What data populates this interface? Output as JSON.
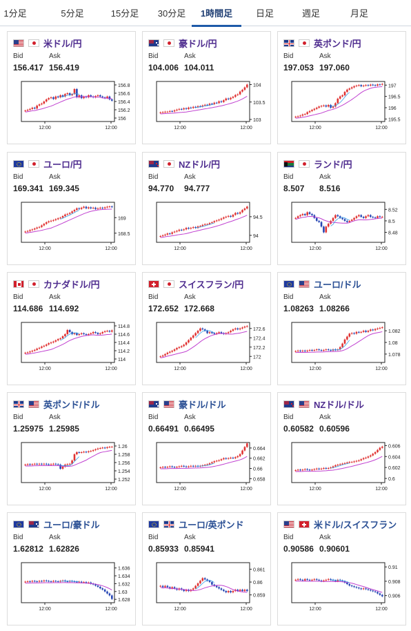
{
  "tabs": [
    {
      "label": "1分足",
      "active": false
    },
    {
      "label": "5分足",
      "active": false
    },
    {
      "label": "15分足",
      "active": false
    },
    {
      "label": "30分足",
      "active": false
    },
    {
      "label": "1時間足",
      "active": true
    },
    {
      "label": "日足",
      "active": false
    },
    {
      "label": "週足",
      "active": false
    },
    {
      "label": "月足",
      "active": false
    }
  ],
  "labels": {
    "bid": "Bid",
    "ask": "Ask"
  },
  "colors": {
    "up": "#e03232",
    "down": "#2646b4",
    "ma": "#c040d0",
    "ma_short": "#3aa0e8",
    "frame": "#222222",
    "accent": "#1e5aa8"
  },
  "pairs": [
    {
      "name": "米ドル/円",
      "flags": [
        "us",
        "jp"
      ],
      "bid": "156.417",
      "ask": "156.419",
      "chart_data": {
        "type": "candlestick",
        "x_ticks": [
          "12:00",
          "12:00"
        ],
        "y_ticks": [
          "156.8",
          "156.6",
          "156.4",
          "156.2",
          "156"
        ],
        "ylim": [
          155.95,
          156.85
        ],
        "close": [
          156.18,
          156.2,
          156.22,
          156.25,
          156.23,
          156.3,
          156.33,
          156.35,
          156.4,
          156.45,
          156.48,
          156.5,
          156.46,
          156.52,
          156.5,
          156.55,
          156.52,
          156.58,
          156.6,
          156.55,
          156.58,
          156.7,
          156.5,
          156.55,
          156.48,
          156.52,
          156.5,
          156.55,
          156.52,
          156.5,
          156.53,
          156.55,
          156.52,
          156.5,
          156.48,
          156.52,
          156.45,
          156.42
        ]
      }
    },
    {
      "name": "豪ドル/円",
      "flags": [
        "au",
        "jp"
      ],
      "bid": "104.006",
      "ask": "104.011",
      "chart_data": {
        "type": "candlestick",
        "x_ticks": [
          "12:00",
          "12:00"
        ],
        "y_ticks": [
          "104",
          "103.5",
          "103"
        ],
        "ylim": [
          102.98,
          104.05
        ],
        "close": [
          103.2,
          103.21,
          103.22,
          103.22,
          103.24,
          103.23,
          103.26,
          103.28,
          103.3,
          103.29,
          103.32,
          103.3,
          103.34,
          103.33,
          103.36,
          103.35,
          103.38,
          103.37,
          103.4,
          103.42,
          103.41,
          103.45,
          103.44,
          103.48,
          103.47,
          103.52,
          103.5,
          103.55,
          103.6,
          103.58,
          103.62,
          103.65,
          103.7,
          103.72,
          103.8,
          103.85,
          103.92,
          104.0
        ]
      }
    },
    {
      "name": "英ポンド/円",
      "flags": [
        "gb",
        "jp"
      ],
      "bid": "197.053",
      "ask": "197.060",
      "chart_data": {
        "type": "candlestick",
        "x_ticks": [
          "12:00",
          "12:00"
        ],
        "y_ticks": [
          "197",
          "196.5",
          "196",
          "195.5"
        ],
        "ylim": [
          195.45,
          197.1
        ],
        "close": [
          195.6,
          195.62,
          195.65,
          195.7,
          195.72,
          195.8,
          195.85,
          195.9,
          195.95,
          196.0,
          196.05,
          196.08,
          196.1,
          196.05,
          196.12,
          196.0,
          196.05,
          196.2,
          196.4,
          196.5,
          196.55,
          196.7,
          196.8,
          196.85,
          196.9,
          196.95,
          196.98,
          197.0,
          196.95,
          196.98,
          197.0,
          196.98,
          197.02,
          197.0,
          196.98,
          197.03,
          197.02,
          197.05
        ]
      }
    },
    {
      "name": "ユーロ/円",
      "flags": [
        "eu",
        "jp"
      ],
      "bid": "169.341",
      "ask": "169.345",
      "chart_data": {
        "type": "candlestick",
        "x_ticks": [
          "12:00",
          "12:00"
        ],
        "y_ticks": [
          "169",
          "168.5"
        ],
        "ylim": [
          168.25,
          169.45
        ],
        "close": [
          168.55,
          168.57,
          168.6,
          168.62,
          168.65,
          168.68,
          168.7,
          168.75,
          168.8,
          168.85,
          168.88,
          168.9,
          168.92,
          168.95,
          168.98,
          169.0,
          169.05,
          169.1,
          169.12,
          169.15,
          169.2,
          169.25,
          169.3,
          169.28,
          169.32,
          169.35,
          169.3,
          169.33,
          169.3,
          169.32,
          169.28,
          169.3,
          169.32,
          169.3,
          169.33,
          169.35,
          169.36,
          169.34
        ]
      }
    },
    {
      "name": "NZドル/円",
      "flags": [
        "nz",
        "jp"
      ],
      "bid": "94.770",
      "ask": "94.777",
      "chart_data": {
        "type": "candlestick",
        "x_ticks": [
          "12:00",
          "12:00"
        ],
        "y_ticks": [
          "94.5",
          "94"
        ],
        "ylim": [
          93.85,
          94.85
        ],
        "close": [
          93.98,
          94.0,
          94.02,
          94.05,
          94.04,
          94.08,
          94.1,
          94.12,
          94.15,
          94.14,
          94.16,
          94.2,
          94.18,
          94.2,
          94.22,
          94.2,
          94.24,
          94.25,
          94.28,
          94.3,
          94.3,
          94.33,
          94.35,
          94.38,
          94.4,
          94.42,
          94.45,
          94.48,
          94.5,
          94.52,
          94.5,
          94.55,
          94.6,
          94.58,
          94.62,
          94.68,
          94.72,
          94.77
        ]
      }
    },
    {
      "name": "ランド/円",
      "flags": [
        "za",
        "jp"
      ],
      "bid": "8.507",
      "ask": "8.516",
      "chart_data": {
        "type": "candlestick",
        "x_ticks": [
          "12:00",
          "12:00"
        ],
        "y_ticks": [
          "8.52",
          "8.5",
          "8.48"
        ],
        "ylim": [
          8.465,
          8.53
        ],
        "close": [
          8.505,
          8.508,
          8.51,
          8.512,
          8.51,
          8.515,
          8.512,
          8.51,
          8.505,
          8.5,
          8.498,
          8.49,
          8.48,
          8.49,
          8.495,
          8.5,
          8.505,
          8.51,
          8.508,
          8.505,
          8.503,
          8.5,
          8.498,
          8.5,
          8.502,
          8.505,
          8.508,
          8.51,
          8.507,
          8.505,
          8.508,
          8.51,
          8.507,
          8.506,
          8.505,
          8.508,
          8.507,
          8.507
        ]
      }
    },
    {
      "name": "カナダドル/円",
      "flags": [
        "ca",
        "jp"
      ],
      "bid": "114.686",
      "ask": "114.692",
      "chart_data": {
        "type": "candlestick",
        "x_ticks": [
          "12:00",
          "12:00"
        ],
        "y_ticks": [
          "114.8",
          "114.6",
          "114.4",
          "114.2",
          "114"
        ],
        "ylim": [
          113.95,
          114.85
        ],
        "close": [
          114.15,
          114.16,
          114.18,
          114.2,
          114.22,
          114.25,
          114.27,
          114.3,
          114.32,
          114.35,
          114.38,
          114.4,
          114.42,
          114.45,
          114.48,
          114.5,
          114.55,
          114.6,
          114.7,
          114.65,
          114.6,
          114.62,
          114.58,
          114.6,
          114.62,
          114.6,
          114.58,
          114.6,
          114.62,
          114.65,
          114.63,
          114.6,
          114.62,
          114.65,
          114.67,
          114.68,
          114.66,
          114.69
        ]
      }
    },
    {
      "name": "スイスフラン/円",
      "flags": [
        "ch",
        "jp"
      ],
      "bid": "172.652",
      "ask": "172.668",
      "chart_data": {
        "type": "candlestick",
        "x_ticks": [
          "12:00",
          "12:00"
        ],
        "y_ticks": [
          "172.6",
          "172.4",
          "172.2",
          "172"
        ],
        "ylim": [
          171.9,
          172.7
        ],
        "close": [
          172.0,
          172.02,
          172.05,
          172.08,
          172.1,
          172.12,
          172.15,
          172.18,
          172.2,
          172.22,
          172.25,
          172.3,
          172.35,
          172.4,
          172.45,
          172.5,
          172.55,
          172.6,
          172.58,
          172.55,
          172.5,
          172.52,
          172.5,
          172.48,
          172.5,
          172.52,
          172.5,
          172.48,
          172.5,
          172.52,
          172.55,
          172.58,
          172.6,
          172.58,
          172.6,
          172.62,
          172.64,
          172.65
        ]
      }
    },
    {
      "name": "ユーロ/ドル",
      "flags": [
        "eu",
        "us"
      ],
      "bid": "1.08263",
      "ask": "1.08266",
      "chart_data": {
        "type": "candlestick",
        "x_ticks": [
          "12:00",
          "12:00"
        ],
        "y_ticks": [
          "1.082",
          "1.08",
          "1.078"
        ],
        "ylim": [
          1.0768,
          1.0832
        ],
        "close": [
          1.0785,
          1.0786,
          1.0785,
          1.0786,
          1.0785,
          1.0786,
          1.0787,
          1.0786,
          1.0787,
          1.0788,
          1.0787,
          1.0786,
          1.0787,
          1.0788,
          1.0787,
          1.0786,
          1.0788,
          1.0787,
          1.0788,
          1.0792,
          1.0798,
          1.0805,
          1.081,
          1.0815,
          1.0816,
          1.0815,
          1.0818,
          1.0817,
          1.0818,
          1.082,
          1.0818,
          1.082,
          1.0822,
          1.0821,
          1.0823,
          1.0824,
          1.0825,
          1.0826
        ]
      }
    },
    {
      "name": "英ポンド/ドル",
      "flags": [
        "gb",
        "us"
      ],
      "bid": "1.25975",
      "ask": "1.25985",
      "chart_data": {
        "type": "candlestick",
        "x_ticks": [
          "12:00",
          "12:00"
        ],
        "y_ticks": [
          "1.26",
          "1.258",
          "1.256",
          "1.254",
          "1.252"
        ],
        "ylim": [
          1.2515,
          1.2605
        ],
        "close": [
          1.2555,
          1.2556,
          1.2555,
          1.2556,
          1.2557,
          1.2556,
          1.2557,
          1.2556,
          1.2557,
          1.2556,
          1.2555,
          1.2556,
          1.2557,
          1.2556,
          1.2555,
          1.2545,
          1.255,
          1.2555,
          1.2556,
          1.2557,
          1.2565,
          1.258,
          1.2585,
          1.2584,
          1.2585,
          1.2586,
          1.2585,
          1.2587,
          1.2588,
          1.259,
          1.2592,
          1.2594,
          1.2595,
          1.2596,
          1.2595,
          1.2597,
          1.2598,
          1.2598
        ]
      }
    },
    {
      "name": "豪ドル/ドル",
      "flags": [
        "au",
        "us"
      ],
      "bid": "0.66491",
      "ask": "0.66495",
      "chart_data": {
        "type": "candlestick",
        "x_ticks": [
          "12:00",
          "12:00"
        ],
        "y_ticks": [
          "0.664",
          "0.662",
          "0.66",
          "0.658"
        ],
        "ylim": [
          0.6575,
          0.6648
        ],
        "close": [
          0.6602,
          0.6603,
          0.6602,
          0.6603,
          0.6604,
          0.6603,
          0.6602,
          0.6603,
          0.6604,
          0.6605,
          0.6604,
          0.6603,
          0.6604,
          0.6605,
          0.6604,
          0.6605,
          0.6604,
          0.6605,
          0.6606,
          0.6607,
          0.6608,
          0.661,
          0.6612,
          0.6614,
          0.6615,
          0.6616,
          0.6618,
          0.662,
          0.6619,
          0.662,
          0.6621,
          0.662,
          0.6622,
          0.6624,
          0.6628,
          0.6635,
          0.6642,
          0.6649
        ]
      }
    },
    {
      "name": "NZドル/ドル",
      "flags": [
        "nz",
        "us"
      ],
      "bid": "0.60582",
      "ask": "0.60596",
      "chart_data": {
        "type": "candlestick",
        "x_ticks": [
          "12:00",
          "12:00"
        ],
        "y_ticks": [
          "0.606",
          "0.604",
          "0.602",
          "0.6"
        ],
        "ylim": [
          0.5995,
          0.6063
        ],
        "close": [
          0.6015,
          0.6016,
          0.6015,
          0.6016,
          0.6017,
          0.6016,
          0.6015,
          0.6016,
          0.6017,
          0.6018,
          0.6017,
          0.6018,
          0.6019,
          0.6018,
          0.6019,
          0.602,
          0.6022,
          0.6024,
          0.6025,
          0.6026,
          0.6027,
          0.6028,
          0.6029,
          0.603,
          0.603,
          0.6031,
          0.6032,
          0.6033,
          0.6035,
          0.6037,
          0.6038,
          0.604,
          0.6042,
          0.6045,
          0.6048,
          0.6052,
          0.6056,
          0.6058
        ]
      }
    },
    {
      "name": "ユーロ/豪ドル",
      "flags": [
        "eu",
        "au"
      ],
      "bid": "1.62812",
      "ask": "1.62826",
      "chart_data": {
        "type": "candlestick",
        "x_ticks": [
          "12:00",
          "12:00"
        ],
        "y_ticks": [
          "1.636",
          "1.634",
          "1.632",
          "1.63",
          "1.628"
        ],
        "ylim": [
          1.6275,
          1.637
        ],
        "close": [
          1.6325,
          1.6326,
          1.6325,
          1.6327,
          1.6326,
          1.6325,
          1.6327,
          1.6326,
          1.6328,
          1.6327,
          1.6326,
          1.6325,
          1.6327,
          1.6326,
          1.6325,
          1.6327,
          1.6328,
          1.6326,
          1.6325,
          1.6327,
          1.6326,
          1.6325,
          1.6324,
          1.6325,
          1.6323,
          1.6324,
          1.6322,
          1.6323,
          1.632,
          1.6318,
          1.6315,
          1.6312,
          1.6308,
          1.6305,
          1.63,
          1.6295,
          1.629,
          1.6281
        ]
      }
    },
    {
      "name": "ユーロ/英ポンド",
      "flags": [
        "eu",
        "gb"
      ],
      "bid": "0.85933",
      "ask": "0.85941",
      "chart_data": {
        "type": "candlestick",
        "x_ticks": [
          "12:00",
          "12:00"
        ],
        "y_ticks": [
          "0.861",
          "0.86",
          "0.859"
        ],
        "ylim": [
          0.8585,
          0.8614
        ],
        "close": [
          0.8597,
          0.8596,
          0.8597,
          0.8596,
          0.8595,
          0.8596,
          0.8595,
          0.8594,
          0.8595,
          0.8594,
          0.8593,
          0.8594,
          0.8593,
          0.8594,
          0.8595,
          0.8597,
          0.8599,
          0.8601,
          0.8603,
          0.8602,
          0.8601,
          0.86,
          0.8598,
          0.8597,
          0.8596,
          0.8595,
          0.8594,
          0.8593,
          0.8592,
          0.8593,
          0.8592,
          0.8593,
          0.8594,
          0.8593,
          0.8594,
          0.8593,
          0.8594,
          0.8593
        ]
      }
    },
    {
      "name": "米ドル/スイスフラン",
      "flags": [
        "us",
        "ch"
      ],
      "bid": "0.90586",
      "ask": "0.90601",
      "chart_data": {
        "type": "candlestick",
        "x_ticks": [
          "12:00",
          "12:00"
        ],
        "y_ticks": [
          "0.91",
          "0.908",
          "0.906"
        ],
        "ylim": [
          0.9052,
          0.9104
        ],
        "close": [
          0.9082,
          0.9083,
          0.9082,
          0.9081,
          0.9083,
          0.9082,
          0.9081,
          0.9082,
          0.9083,
          0.9082,
          0.9081,
          0.908,
          0.9081,
          0.9082,
          0.9083,
          0.9082,
          0.9081,
          0.908,
          0.9082,
          0.9081,
          0.908,
          0.9078,
          0.9076,
          0.9074,
          0.9073,
          0.9072,
          0.9071,
          0.907,
          0.9069,
          0.907,
          0.9069,
          0.9068,
          0.9067,
          0.9066,
          0.9065,
          0.9063,
          0.9061,
          0.9059
        ]
      }
    }
  ]
}
